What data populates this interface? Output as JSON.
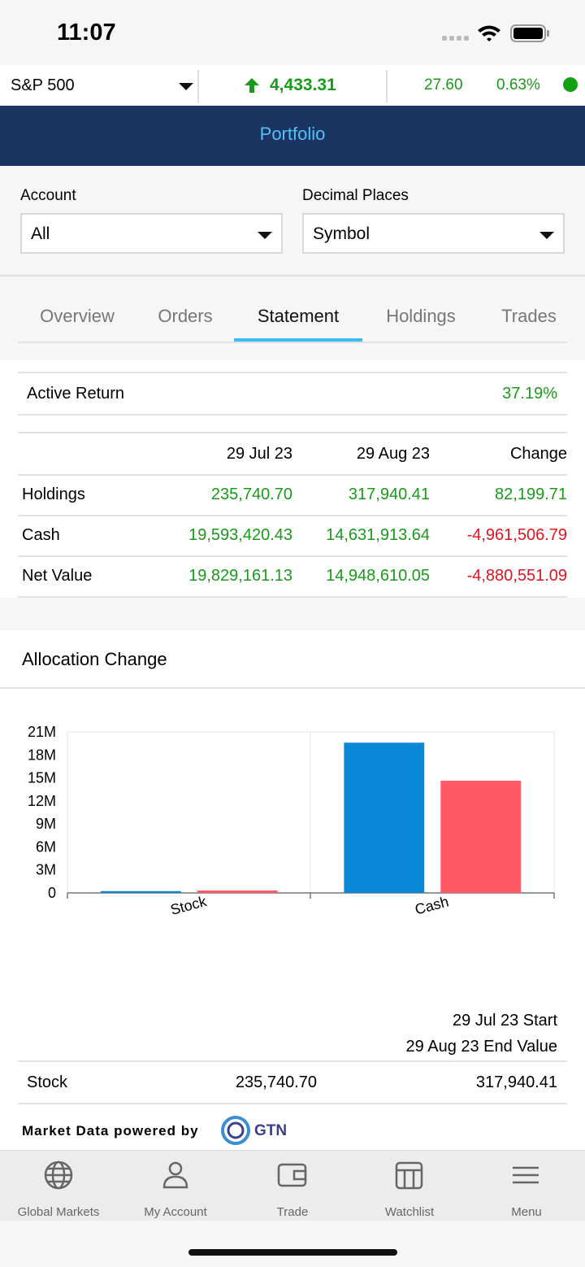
{
  "status_bar": {
    "time": "11:07"
  },
  "ticker": {
    "index": "S&P 500",
    "value": "4,433.31",
    "change": "27.60",
    "change_percent": "0.63%"
  },
  "header": {
    "title": "Portfolio"
  },
  "filters": [
    {
      "label": "Account",
      "value": "All"
    },
    {
      "label": "Decimal Places",
      "value": "Symbol"
    }
  ],
  "tabs": {
    "items": [
      "Overview",
      "Orders",
      "Statement",
      "Holdings",
      "Trades"
    ],
    "active": 2
  },
  "active_return": {
    "label": "Active Return",
    "value": "37.19%"
  },
  "statement": {
    "columns": [
      "29 Jul 23",
      "29 Aug 23",
      "Change"
    ],
    "rows": [
      [
        "Holdings",
        "235,740.70",
        "317,940.41",
        "82,199.71"
      ],
      [
        "Cash",
        "19,593,420.43",
        "14,631,913.64",
        "-4,961,506.79"
      ],
      [
        "Net Value",
        "19,829,161.13",
        "14,948,610.05",
        "-4,880,551.09"
      ]
    ]
  },
  "allocation": {
    "title": "Allocation Change",
    "legend_lines": [
      "29 Jul 23 Start",
      "29 Aug 23 End Value"
    ],
    "rows": [
      [
        "Stock",
        "235,740.70",
        "317,940.41"
      ]
    ]
  },
  "chart_data": {
    "type": "bar",
    "categories": [
      "Stock",
      "Cash"
    ],
    "series": [
      {
        "color": "#0a87d6",
        "values": [
          235740.7,
          19593420.43
        ]
      },
      {
        "color": "#ff5a66",
        "values": [
          317940.41,
          14631913.64
        ]
      }
    ],
    "ylim": [
      0,
      21000000
    ],
    "yticks": [
      0,
      {
        "value": 3000000,
        "label": "3M"
      },
      {
        "value": 6000000,
        "label": "6M"
      },
      {
        "value": 9000000,
        "label": "9M"
      },
      {
        "value": 12000000,
        "label": "12M"
      },
      {
        "value": 15000000,
        "label": "15M"
      },
      {
        "value": 18000000,
        "label": "18M"
      },
      {
        "value": 21000000,
        "label": "21M"
      }
    ],
    "grid": false
  },
  "footer": {
    "powered_by": "Market Data powered by",
    "logo": "GTN"
  },
  "tab_bar": [
    "Global Markets",
    "My Account",
    "Trade",
    "Watchlist",
    "Menu"
  ]
}
